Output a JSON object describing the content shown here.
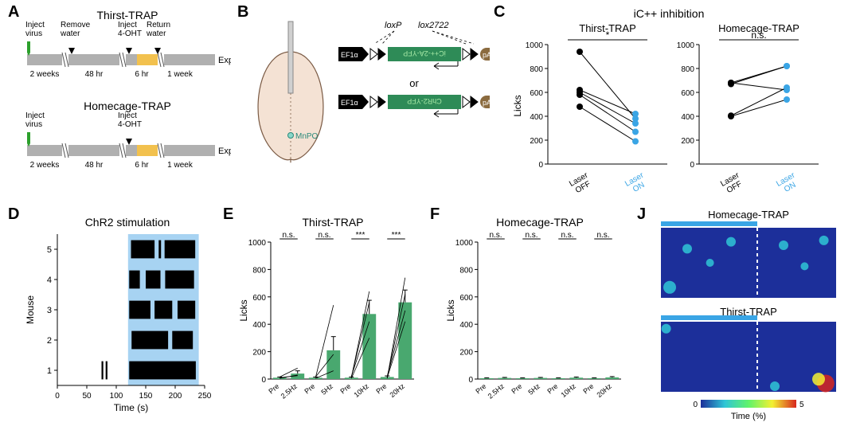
{
  "colors": {
    "text": "#000000",
    "green_inject": "#2ca02c",
    "timeline_bar": "#b0b0b0",
    "timeline_yellow": "#f2c14e",
    "brain_fill": "#f4e2d4",
    "brain_stroke": "#7a5a44",
    "construct_black": "#000000",
    "construct_green": "#2e8b57",
    "construct_green_text": "#a6e8a6",
    "construct_brown": "#8b6b3f",
    "laser_on_blue": "#3aa5e5",
    "stim_blue_bg": "#a7d3f2",
    "raster_black": "#000000",
    "bar_green": "#49a86f",
    "heatmap_bg": "#1c2f9a",
    "heatmap_cyan": "#2fc5d6",
    "heatmap_yellow": "#f3f033",
    "heatmap_red": "#d7261e",
    "heatmap_bar": "#3aa5e5"
  },
  "A": {
    "label": "A",
    "top_title": "Thirst-TRAP",
    "bottom_title": "Homecage-TRAP",
    "tags": {
      "inject_virus": "Inject\nvirus",
      "remove_water": "Remove\nwater",
      "inject_4oht": "Inject\n4-OHT",
      "return_water": "Return\nwater",
      "expt": "Expt"
    },
    "durations_top": [
      "2 weeks",
      "48 hr",
      "6 hr",
      "1 week"
    ],
    "durations_bottom": [
      "2 weeks",
      "48 hr",
      "6 hr",
      "1 week"
    ]
  },
  "B": {
    "label": "B",
    "loxP": "loxP",
    "lox2722": "lox2722",
    "EF1a": "EF1α",
    "pA": "pA",
    "or": "or",
    "construct1_text": "iC++-2A-YFP",
    "construct2_text": "ChR2-YFP",
    "mpo": "MnPO"
  },
  "C": {
    "label": "C",
    "supertitle": "iC++ inhibition",
    "left_title": "Thirst-TRAP",
    "right_title": "Homecage-TRAP",
    "left_sig": "*",
    "right_sig": "n.s.",
    "ylabel": "Licks",
    "yticks": [
      0,
      200,
      400,
      600,
      800,
      1000
    ],
    "xlabels": [
      "Laser\nOFF",
      "Laser\nON"
    ],
    "thirst_pairs": [
      [
        940,
        380
      ],
      [
        620,
        420
      ],
      [
        600,
        340
      ],
      [
        580,
        270
      ],
      [
        480,
        190
      ]
    ],
    "homecage_pairs": [
      [
        680,
        820
      ],
      [
        680,
        620
      ],
      [
        670,
        820
      ],
      [
        405,
        640
      ],
      [
        400,
        540
      ]
    ]
  },
  "D": {
    "label": "D",
    "title": "ChR2 stimulation",
    "ylabel": "Mouse",
    "xlabel": "Time (s)",
    "xticks": [
      0,
      50,
      100,
      150,
      200,
      250
    ],
    "yticks": [
      1,
      2,
      3,
      4,
      5
    ],
    "xlim": [
      0,
      250
    ],
    "stim_window": [
      120,
      240
    ],
    "row_height": 1,
    "rasters": {
      "1": [
        [
          75,
          78
        ],
        [
          82,
          85
        ],
        [
          122,
          235
        ]
      ],
      "2": [
        [
          126,
          188
        ],
        [
          195,
          230
        ]
      ],
      "3": [
        [
          122,
          158
        ],
        [
          165,
          195
        ],
        [
          204,
          234
        ]
      ],
      "4": [
        [
          122,
          140
        ],
        [
          150,
          175
        ],
        [
          183,
          232
        ]
      ],
      "5": [
        [
          125,
          165
        ],
        [
          172,
          176
        ],
        [
          182,
          234
        ]
      ]
    }
  },
  "E": {
    "label": "E",
    "title": "Thirst-TRAP",
    "ylabel": "Licks",
    "yticks": [
      0,
      200,
      400,
      600,
      800,
      1000
    ],
    "groups": [
      "Pre",
      "2.5Hz",
      "Pre",
      "5Hz",
      "Pre",
      "10Hz",
      "Pre",
      "20Hz"
    ],
    "sig": [
      "n.s.",
      "n.s.",
      "***",
      "***"
    ],
    "bars": [
      10,
      40,
      10,
      210,
      10,
      475,
      15,
      560
    ],
    "sem": [
      5,
      20,
      5,
      100,
      5,
      100,
      8,
      90
    ],
    "lines": [
      [
        0,
        5,
        1,
        30
      ],
      [
        0,
        15,
        1,
        80
      ],
      [
        0,
        10,
        1,
        25
      ],
      [
        2,
        5,
        3,
        60
      ],
      [
        2,
        10,
        3,
        540
      ],
      [
        2,
        15,
        3,
        180
      ],
      [
        4,
        5,
        5,
        300
      ],
      [
        4,
        10,
        5,
        640
      ],
      [
        4,
        15,
        5,
        560
      ],
      [
        4,
        20,
        5,
        420
      ],
      [
        6,
        5,
        7,
        740
      ],
      [
        6,
        15,
        7,
        620
      ],
      [
        6,
        20,
        7,
        500
      ],
      [
        6,
        10,
        7,
        420
      ]
    ]
  },
  "F": {
    "label": "F",
    "title": "Homecage-TRAP",
    "ylabel": "Licks",
    "yticks": [
      0,
      200,
      400,
      600,
      800,
      1000
    ],
    "groups": [
      "Pre",
      "2.5Hz",
      "Pre",
      "5Hz",
      "Pre",
      "10Hz",
      "Pre",
      "20Hz"
    ],
    "sig": [
      "n.s.",
      "n.s.",
      "n.s.",
      "n.s."
    ],
    "bars": [
      6,
      8,
      6,
      8,
      6,
      10,
      6,
      12
    ],
    "sem": [
      3,
      4,
      3,
      4,
      3,
      5,
      3,
      6
    ]
  },
  "J": {
    "label": "J",
    "top_title": "Homecage-TRAP",
    "bottom_title": "Thirst-TRAP",
    "colorbar_label": "Time (%)",
    "colorbar_ticks": [
      0,
      5
    ]
  }
}
